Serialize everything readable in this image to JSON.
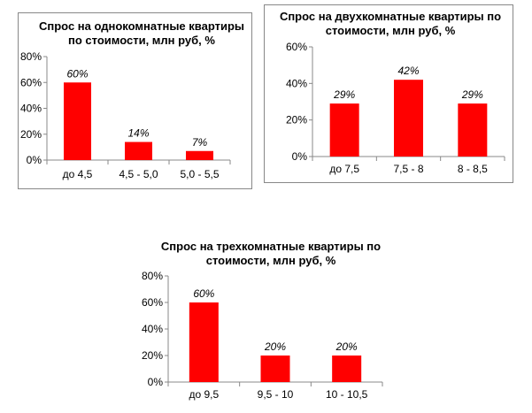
{
  "chart_data": [
    {
      "type": "bar",
      "title_lines": [
        "Спрос на однокомнатные квартиры",
        "по стоимости, млн руб, %"
      ],
      "categories": [
        "до 4,5",
        "4,5 - 5,0",
        "5,0 - 5,5"
      ],
      "values": [
        60,
        14,
        7
      ],
      "data_labels": [
        "60%",
        "14%",
        "7%"
      ],
      "yticks": [
        "0%",
        "20%",
        "40%",
        "60%",
        "80%"
      ],
      "ylim": [
        0,
        80
      ],
      "bar_color": "#ff0000",
      "grid": false
    },
    {
      "type": "bar",
      "title_lines": [
        "Спрос на двухкомнатные квартиры по",
        "стоимости, млн руб, %"
      ],
      "categories": [
        "до 7,5",
        "7,5 - 8",
        "8 - 8,5"
      ],
      "values": [
        29,
        42,
        29
      ],
      "data_labels": [
        "29%",
        "42%",
        "29%"
      ],
      "yticks": [
        "0%",
        "20%",
        "40%",
        "60%"
      ],
      "ylim": [
        0,
        60
      ],
      "bar_color": "#ff0000",
      "grid": false
    },
    {
      "type": "bar",
      "title_lines": [
        "Спрос на трехкомнатные квартиры по",
        "стоимости, млн руб, %"
      ],
      "categories": [
        "до 9,5",
        "9,5 - 10",
        "10 - 10,5"
      ],
      "values": [
        60,
        20,
        20
      ],
      "data_labels": [
        "60%",
        "20%",
        "20%"
      ],
      "yticks": [
        "0%",
        "20%",
        "40%",
        "60%",
        "80%"
      ],
      "ylim": [
        0,
        80
      ],
      "bar_color": "#ff0000",
      "grid": false
    }
  ]
}
